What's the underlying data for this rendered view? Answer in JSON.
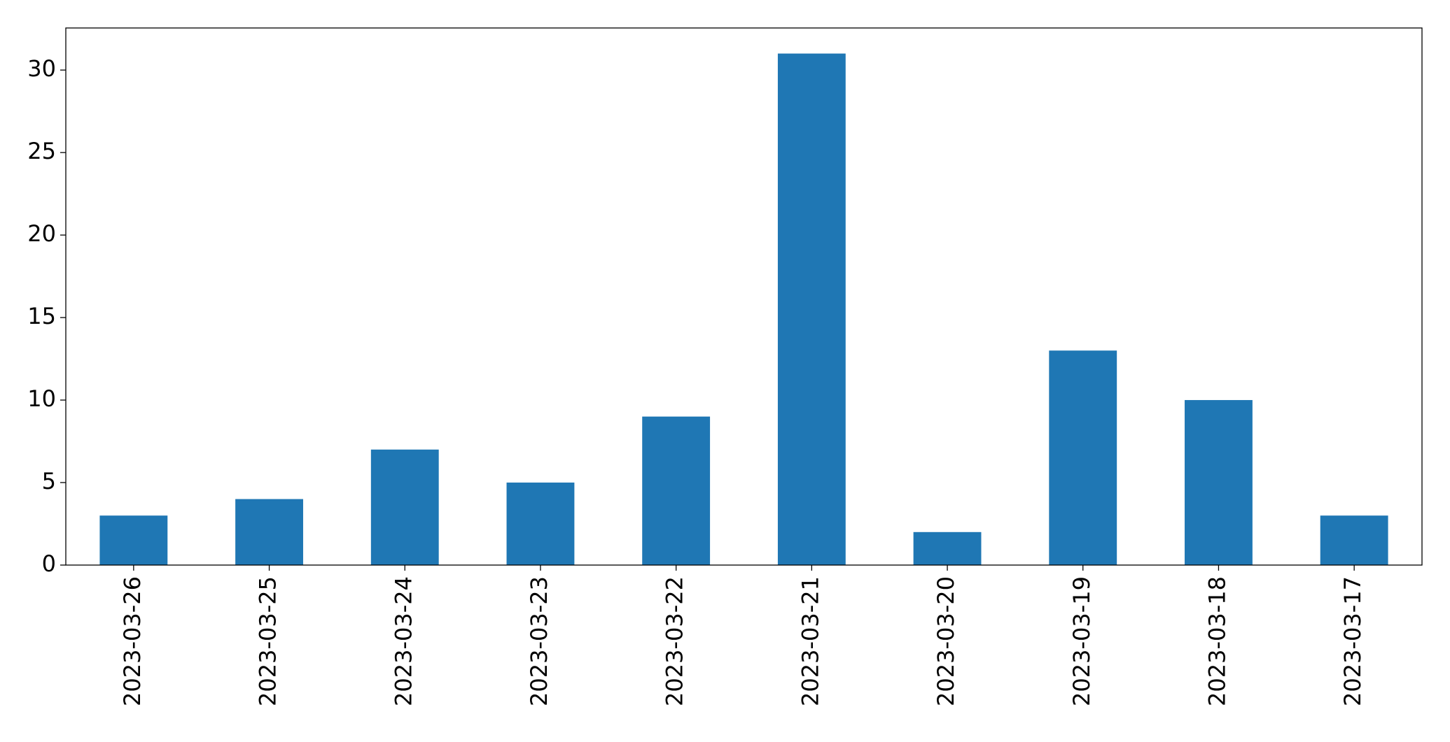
{
  "chart_data": {
    "type": "bar",
    "categories": [
      "2023-03-26",
      "2023-03-25",
      "2023-03-24",
      "2023-03-23",
      "2023-03-22",
      "2023-03-21",
      "2023-03-20",
      "2023-03-19",
      "2023-03-18",
      "2023-03-17"
    ],
    "values": [
      3,
      4,
      7,
      5,
      9,
      31,
      2,
      13,
      10,
      3
    ],
    "color": "#1f77b4",
    "ylim": [
      0,
      32.55
    ],
    "yticks": [
      0,
      5,
      10,
      15,
      20,
      25,
      30
    ],
    "grid": false
  }
}
